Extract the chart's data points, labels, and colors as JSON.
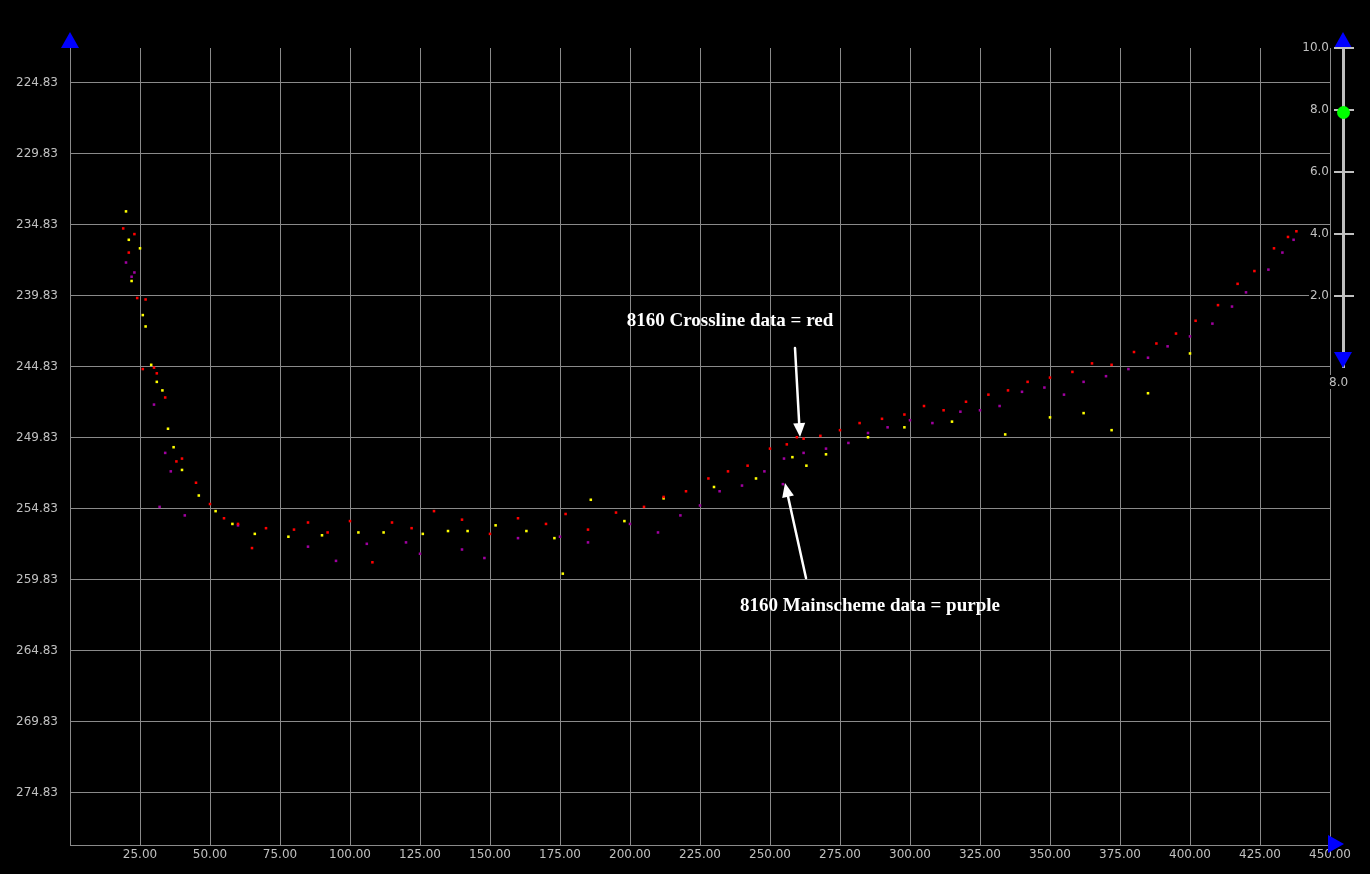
{
  "chart_data": {
    "type": "scatter",
    "xlim": [
      0,
      450
    ],
    "xticks": [
      {
        "value": 25,
        "label": "25.00"
      },
      {
        "value": 50,
        "label": "50.00"
      },
      {
        "value": 75,
        "label": "75.00"
      },
      {
        "value": 100,
        "label": "100.00"
      },
      {
        "value": 125,
        "label": "125.00"
      },
      {
        "value": 150,
        "label": "150.00"
      },
      {
        "value": 175,
        "label": "175.00"
      },
      {
        "value": 200,
        "label": "200.00"
      },
      {
        "value": 225,
        "label": "225.00"
      },
      {
        "value": 250,
        "label": "250.00"
      },
      {
        "value": 275,
        "label": "275.00"
      },
      {
        "value": 300,
        "label": "300.00"
      },
      {
        "value": 325,
        "label": "325.00"
      },
      {
        "value": 350,
        "label": "350.00"
      },
      {
        "value": 375,
        "label": "375.00"
      },
      {
        "value": 400,
        "label": "400.00"
      },
      {
        "value": 425,
        "label": "425.00"
      },
      {
        "value": 450,
        "label": "450.00"
      }
    ],
    "ylim": [
      278.5,
      222.4
    ],
    "yticks": [
      224.83,
      229.83,
      234.83,
      239.83,
      244.83,
      249.83,
      254.83,
      259.83,
      264.83,
      269.83,
      274.83
    ],
    "grid": true,
    "marker": "square",
    "series": [
      {
        "color": "#ff0000",
        "x": [
          19,
          21,
          23,
          24,
          27,
          30,
          31,
          26,
          34,
          38,
          40,
          45,
          50,
          55,
          60,
          65,
          70,
          80,
          85,
          92,
          100,
          108,
          115,
          122,
          130,
          140,
          150,
          160,
          170,
          177,
          185,
          195,
          205,
          212,
          220,
          228,
          235,
          242,
          250,
          256,
          259.6,
          262,
          268,
          275,
          282,
          290,
          298,
          305,
          312,
          320,
          328,
          335,
          342,
          350,
          358,
          365,
          372,
          380,
          388,
          395,
          402,
          410,
          417,
          423,
          430,
          435,
          438
        ],
        "values": [
          235.1,
          236.8,
          235.5,
          240.0,
          240.1,
          244.9,
          245.3,
          245.0,
          247.0,
          251.5,
          251.3,
          253.0,
          254.5,
          255.5,
          255.9,
          257.6,
          256.2,
          256.3,
          255.8,
          256.5,
          255.7,
          258.6,
          255.8,
          256.2,
          255.0,
          255.6,
          256.6,
          255.5,
          255.9,
          255.2,
          256.3,
          255.1,
          254.7,
          254.0,
          253.6,
          252.7,
          252.2,
          251.8,
          250.6,
          250.3,
          249.8,
          249.9,
          249.7,
          249.3,
          248.8,
          248.5,
          248.2,
          247.6,
          247.9,
          247.3,
          246.8,
          246.5,
          245.9,
          245.6,
          245.2,
          244.6,
          244.7,
          243.8,
          243.2,
          242.5,
          241.6,
          240.5,
          239.0,
          238.1,
          236.5,
          235.7,
          235.3
        ]
      },
      {
        "color": "#a000a0",
        "x": [
          20,
          22,
          23,
          30,
          32,
          34,
          36,
          41,
          60,
          85,
          95,
          106,
          120,
          125,
          140,
          148,
          160,
          175,
          185,
          200,
          210,
          218,
          225,
          232,
          240,
          248,
          254.6,
          255,
          262,
          270,
          278,
          285,
          292,
          300,
          308,
          318,
          325,
          332,
          340,
          348,
          355,
          362,
          370,
          378,
          385,
          392,
          400,
          408,
          415,
          420,
          428,
          433,
          437
        ],
        "values": [
          237.5,
          238.5,
          238.2,
          247.5,
          254.7,
          250.9,
          252.2,
          255.3,
          256.0,
          257.5,
          258.5,
          257.3,
          257.2,
          258.0,
          257.7,
          258.3,
          256.9,
          256.8,
          257.2,
          255.9,
          256.5,
          255.3,
          254.6,
          253.6,
          253.2,
          252.2,
          253.1,
          251.3,
          250.9,
          250.6,
          250.2,
          249.5,
          249.1,
          248.6,
          248.8,
          248.0,
          247.9,
          247.6,
          246.6,
          246.3,
          246.8,
          245.9,
          245.5,
          245.0,
          244.2,
          243.4,
          242.7,
          241.8,
          240.6,
          239.6,
          238.0,
          236.8,
          235.9
        ]
      },
      {
        "color": "#ffff00",
        "x": [
          20,
          21,
          22,
          25,
          26,
          27,
          29,
          31,
          33,
          35,
          37,
          40,
          46,
          52,
          58,
          66,
          78,
          90,
          103,
          112,
          126,
          135,
          142,
          152,
          163,
          173,
          176,
          186,
          198,
          212,
          230,
          245,
          258,
          263,
          270,
          285,
          298,
          315,
          334,
          350,
          362,
          372,
          385,
          400
        ],
        "values": [
          233.9,
          235.9,
          238.8,
          236.5,
          241.2,
          242.0,
          244.7,
          245.9,
          246.5,
          249.2,
          250.5,
          252.1,
          253.9,
          255.0,
          255.9,
          256.6,
          256.8,
          256.7,
          256.5,
          256.5,
          256.6,
          256.4,
          256.4,
          256.0,
          256.4,
          256.9,
          259.4,
          254.2,
          255.7,
          254.1,
          253.3,
          252.7,
          251.2,
          251.8,
          251.0,
          249.8,
          249.1,
          248.7,
          249.6,
          248.4,
          248.1,
          249.3,
          246.7,
          243.9
        ]
      }
    ],
    "annotations": [
      "8160 Crossline data = red",
      "8160 Mainscheme data = purple",
      "10.0",
      "8.0",
      "6.0",
      "4.0",
      "2.0",
      "8.0"
    ]
  }
}
